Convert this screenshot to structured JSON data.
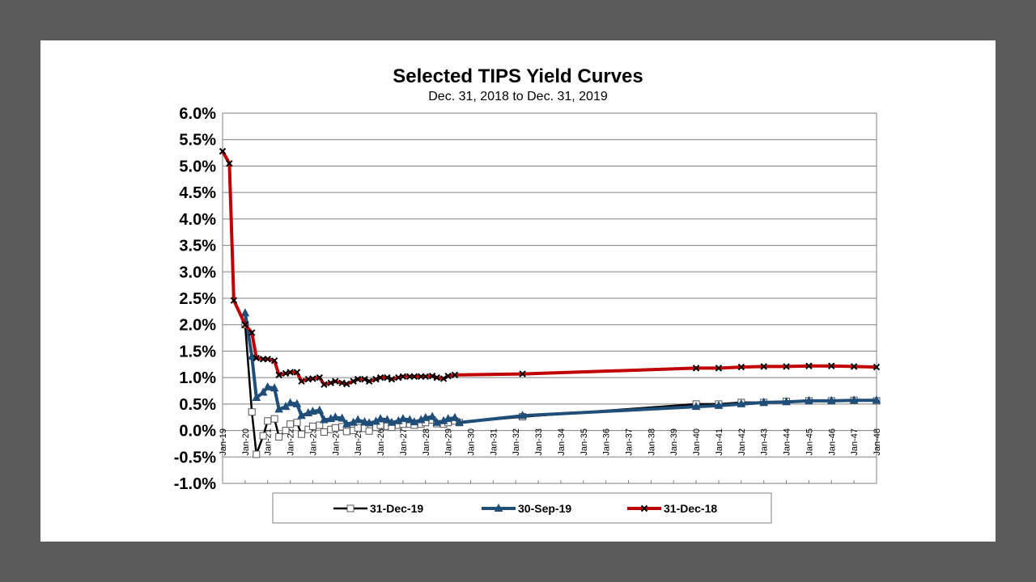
{
  "chart_data": {
    "type": "line",
    "title": "Selected TIPS Yield Curves",
    "subtitle": "Dec. 31, 2018 to Dec. 31, 2019",
    "xlabel": "",
    "ylabel": "",
    "ylim": [
      -1.0,
      6.0
    ],
    "y_tick_labels": [
      "-1.0%",
      "-0.5%",
      "0.0%",
      "0.5%",
      "1.0%",
      "1.5%",
      "2.0%",
      "2.5%",
      "3.0%",
      "3.5%",
      "4.0%",
      "4.5%",
      "5.0%",
      "5.5%",
      "6.0%"
    ],
    "x_tick_labels": [
      "Jan-19",
      "Jan-20",
      "Jan-21",
      "Jan-22",
      "Jan-23",
      "Jan-24",
      "Jan-25",
      "Jan-26",
      "Jan-27",
      "Jan-28",
      "Jan-29",
      "Jan-30",
      "Jan-31",
      "Jan-32",
      "Jan-33",
      "Jan-34",
      "Jan-35",
      "Jan-36",
      "Jan-37",
      "Jan-38",
      "Jan-39",
      "Jan-40",
      "Jan-41",
      "Jan-42",
      "Jan-43",
      "Jan-44",
      "Jan-45",
      "Jan-46",
      "Jan-47",
      "Jan-48"
    ],
    "grid": true,
    "legend_position": "bottom",
    "series": [
      {
        "name": "31-Dec-19",
        "color": "#000000",
        "marker": "square-open",
        "x": [
          2020.0,
          2020.3,
          2020.5,
          2020.8,
          2021.0,
          2021.3,
          2021.5,
          2021.8,
          2022.0,
          2022.3,
          2022.5,
          2022.8,
          2023.0,
          2023.3,
          2023.5,
          2023.8,
          2024.0,
          2024.3,
          2024.5,
          2024.8,
          2025.0,
          2025.3,
          2025.5,
          2025.8,
          2026.0,
          2026.3,
          2026.5,
          2026.8,
          2027.0,
          2027.3,
          2027.5,
          2027.8,
          2028.0,
          2028.3,
          2028.5,
          2028.8,
          2029.0,
          2029.3,
          2029.5,
          2032.3,
          2040.0,
          2041.0,
          2042.0,
          2043.0,
          2044.0,
          2045.0,
          2046.0,
          2047.0,
          2048.0
        ],
        "values": [
          2.0,
          0.35,
          -0.45,
          -0.1,
          0.18,
          0.22,
          -0.12,
          0.0,
          0.12,
          0.15,
          -0.07,
          0.02,
          0.08,
          0.1,
          -0.03,
          0.02,
          0.05,
          0.07,
          -0.02,
          0.0,
          0.05,
          0.04,
          -0.01,
          0.06,
          0.1,
          0.08,
          0.06,
          0.1,
          0.12,
          0.12,
          0.1,
          0.12,
          0.15,
          0.2,
          0.13,
          0.12,
          0.15,
          0.18,
          0.15,
          0.26,
          0.5,
          0.5,
          0.53,
          0.53,
          0.55,
          0.56,
          0.56,
          0.57,
          0.56
        ]
      },
      {
        "name": "30-Sep-19",
        "color": "#1f4e79",
        "marker": "triangle",
        "x": [
          2020.0,
          2020.3,
          2020.5,
          2020.8,
          2021.0,
          2021.3,
          2021.5,
          2021.8,
          2022.0,
          2022.3,
          2022.5,
          2022.8,
          2023.0,
          2023.3,
          2023.5,
          2023.8,
          2024.0,
          2024.3,
          2024.5,
          2024.8,
          2025.0,
          2025.3,
          2025.5,
          2025.8,
          2026.0,
          2026.3,
          2026.5,
          2026.8,
          2027.0,
          2027.3,
          2027.5,
          2027.8,
          2028.0,
          2028.3,
          2028.5,
          2028.8,
          2029.0,
          2029.3,
          2029.5,
          2032.3,
          2040.0,
          2041.0,
          2042.0,
          2043.0,
          2044.0,
          2045.0,
          2046.0,
          2047.0,
          2048.0
        ],
        "values": [
          2.22,
          1.4,
          0.62,
          0.72,
          0.82,
          0.8,
          0.4,
          0.45,
          0.52,
          0.5,
          0.28,
          0.33,
          0.36,
          0.38,
          0.2,
          0.22,
          0.25,
          0.23,
          0.12,
          0.15,
          0.2,
          0.16,
          0.14,
          0.17,
          0.22,
          0.2,
          0.15,
          0.18,
          0.22,
          0.2,
          0.16,
          0.2,
          0.24,
          0.26,
          0.15,
          0.18,
          0.22,
          0.24,
          0.15,
          0.28,
          0.45,
          0.47,
          0.5,
          0.53,
          0.54,
          0.56,
          0.56,
          0.57,
          0.57
        ]
      },
      {
        "name": "31-Dec-18",
        "color": "#c00000",
        "marker": "x",
        "x": [
          2019.0,
          2019.3,
          2019.5,
          2020.0,
          2020.3,
          2020.5,
          2020.8,
          2021.0,
          2021.3,
          2021.5,
          2021.8,
          2022.0,
          2022.3,
          2022.5,
          2022.8,
          2023.0,
          2023.3,
          2023.5,
          2023.8,
          2024.0,
          2024.3,
          2024.5,
          2024.8,
          2025.0,
          2025.3,
          2025.5,
          2025.8,
          2026.0,
          2026.3,
          2026.5,
          2026.8,
          2027.0,
          2027.3,
          2027.5,
          2027.8,
          2028.0,
          2028.3,
          2028.5,
          2028.8,
          2029.0,
          2029.3,
          2032.3,
          2040.0,
          2041.0,
          2042.0,
          2043.0,
          2044.0,
          2045.0,
          2046.0,
          2047.0,
          2048.0
        ],
        "values": [
          5.28,
          5.05,
          2.46,
          2.0,
          1.85,
          1.37,
          1.35,
          1.35,
          1.32,
          1.05,
          1.08,
          1.1,
          1.1,
          0.93,
          0.97,
          0.98,
          1.0,
          0.87,
          0.9,
          0.93,
          0.9,
          0.88,
          0.93,
          0.97,
          0.97,
          0.93,
          0.97,
          1.0,
          1.0,
          0.97,
          1.0,
          1.02,
          1.02,
          1.02,
          1.02,
          1.02,
          1.03,
          1.0,
          0.98,
          1.03,
          1.05,
          1.07,
          1.18,
          1.18,
          1.2,
          1.21,
          1.21,
          1.22,
          1.22,
          1.21,
          1.2
        ]
      }
    ]
  }
}
